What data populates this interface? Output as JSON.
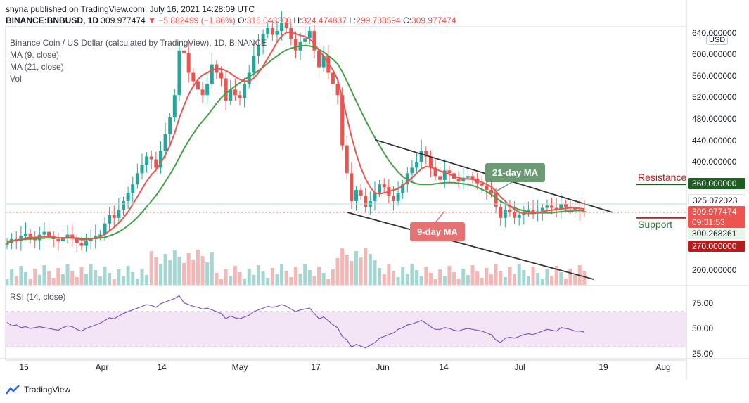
{
  "header": {
    "line1": "shyna published on TradingView.com, July 16, 2021 14:28:09 UTC",
    "symbol": "BINANCE:BNBUSD, 1D",
    "last": "309.977474",
    "change": "−5.882499 (−1.86%)",
    "o_label": "O:",
    "o": "316.043300",
    "h_label": "H:",
    "h": "324.474837",
    "l_label": "L:",
    "l": "299.738594",
    "c_label": "C:",
    "c": "309.977474"
  },
  "legend": {
    "title": "Binance Coin / US Dollar (calculated by TradingView), 1D, BINANCE",
    "ma9": "MA (9, close)",
    "ma21": "MA (21, close)",
    "vol": "Vol"
  },
  "currency": "USD",
  "rsi_label": "RSI (14, close)",
  "footer": "TradingView",
  "annotations": {
    "resistance": "Resistance",
    "support": "Support",
    "ma21_callout": "21-day MA",
    "ma9_callout": "9-day MA"
  },
  "price_tags": {
    "resistance_level": "360.000000",
    "upper_level": "325.072023",
    "last_price": "309.977474",
    "countdown": "09:31:53",
    "lower_level": "300.268261",
    "support_level": "270.000000"
  },
  "colors": {
    "up": "#26a69a",
    "down": "#ef5350",
    "ma9": "#ef5350",
    "ma21": "#43a047",
    "resistance": "#1b5e20",
    "support": "#b71c1c",
    "rsi": "#7e57c2"
  },
  "chart_data": {
    "type": "candlestick",
    "x_ticks": [
      "15",
      "Apr",
      "14",
      "May",
      "17",
      "Jun",
      "14",
      "Jul",
      "19",
      "Aug"
    ],
    "y_ticks": [
      "640.000000",
      "600.000000",
      "560.000000",
      "520.000000",
      "480.000000",
      "440.000000",
      "400.000000",
      "200.000000"
    ],
    "ylim": [
      180,
      640
    ],
    "rsi_ticks": [
      "75.00",
      "50.00",
      "25.00"
    ],
    "rsi_band": [
      30,
      70
    ],
    "closes": [
      255,
      262,
      258,
      268,
      272,
      265,
      260,
      270,
      275,
      268,
      262,
      258,
      265,
      270,
      263,
      255,
      250,
      258,
      262,
      268,
      270,
      290,
      305,
      300,
      315,
      330,
      345,
      360,
      380,
      395,
      410,
      405,
      390,
      420,
      450,
      480,
      520,
      600,
      595,
      560,
      545,
      530,
      520,
      540,
      575,
      560,
      550,
      510,
      530,
      520,
      515,
      540,
      560,
      590,
      610,
      630,
      640,
      628,
      635,
      650,
      640,
      620,
      600,
      615,
      622,
      635,
      600,
      570,
      590,
      560,
      540,
      520,
      430,
      380,
      330,
      350,
      340,
      320,
      330,
      345,
      360,
      355,
      340,
      330,
      345,
      360,
      380,
      390,
      400,
      420,
      410,
      390,
      375,
      368,
      385,
      380,
      370,
      365,
      372,
      375,
      370,
      362,
      358,
      350,
      345,
      320,
      300,
      315,
      310,
      300,
      305,
      310,
      315,
      308,
      312,
      318,
      322,
      318,
      315,
      325,
      320,
      318,
      315,
      312,
      310
    ],
    "ma9": [
      255,
      258,
      260,
      262,
      264,
      265,
      265,
      266,
      267,
      267,
      266,
      264,
      264,
      265,
      264,
      263,
      261,
      261,
      262,
      264,
      266,
      270,
      277,
      283,
      291,
      300,
      311,
      324,
      338,
      352,
      366,
      377,
      386,
      398,
      413,
      430,
      452,
      479,
      501,
      521,
      536,
      548,
      556,
      560,
      565,
      567,
      567,
      564,
      559,
      553,
      548,
      545,
      545,
      550,
      560,
      572,
      586,
      600,
      615,
      626,
      632,
      633,
      630,
      627,
      625,
      620,
      612,
      600,
      590,
      577,
      565,
      548,
      515,
      480,
      445,
      415,
      390,
      370,
      355,
      345,
      343,
      345,
      347,
      350,
      352,
      358,
      365,
      372,
      380,
      388,
      392,
      391,
      388,
      384,
      381,
      378,
      375,
      372,
      370,
      370,
      369,
      367,
      364,
      360,
      356,
      348,
      338,
      330,
      322,
      315,
      310,
      308,
      308,
      308,
      309,
      311,
      313,
      314,
      315,
      316,
      317,
      318,
      318,
      317,
      316
    ],
    "ma21": [
      258,
      259,
      260,
      261,
      262,
      262,
      263,
      263,
      264,
      264,
      264,
      264,
      264,
      264,
      264,
      264,
      263,
      263,
      263,
      263,
      264,
      265,
      268,
      271,
      275,
      280,
      286,
      293,
      301,
      310,
      320,
      330,
      340,
      352,
      365,
      378,
      392,
      408,
      424,
      438,
      451,
      463,
      473,
      483,
      494,
      505,
      515,
      523,
      530,
      536,
      542,
      548,
      553,
      558,
      564,
      570,
      577,
      584,
      590,
      596,
      601,
      604,
      606,
      608,
      609,
      608,
      606,
      602,
      597,
      591,
      584,
      576,
      562,
      545,
      527,
      509,
      492,
      475,
      459,
      444,
      430,
      416,
      403,
      392,
      382,
      374,
      368,
      364,
      361,
      360,
      360,
      360,
      361,
      362,
      363,
      363,
      363,
      362,
      361,
      360,
      358,
      355,
      351,
      347,
      342,
      336,
      330,
      325,
      321,
      318,
      315,
      313,
      311,
      310,
      309,
      309,
      309,
      309,
      310,
      311,
      312,
      312,
      313,
      313,
      313
    ],
    "rsi": [
      58,
      54,
      55,
      52,
      53,
      51,
      52,
      53,
      52,
      51,
      50,
      49,
      52,
      54,
      53,
      50,
      48,
      51,
      53,
      55,
      57,
      60,
      63,
      62,
      65,
      68,
      70,
      72,
      74,
      76,
      78,
      77,
      75,
      79,
      81,
      83,
      85,
      88,
      80,
      78,
      76,
      75,
      73,
      74,
      72,
      70,
      68,
      62,
      65,
      63,
      62,
      64,
      66,
      70,
      72,
      74,
      76,
      75,
      76,
      78,
      76,
      73,
      70,
      72,
      73,
      74,
      68,
      62,
      64,
      60,
      55,
      52,
      42,
      38,
      30,
      33,
      31,
      29,
      32,
      35,
      40,
      42,
      44,
      46,
      50,
      52,
      55,
      56,
      58,
      60,
      57,
      53,
      50,
      50,
      52,
      51,
      49,
      48,
      50,
      51,
      50,
      49,
      48,
      46,
      44,
      38,
      35,
      40,
      41,
      40,
      42,
      44,
      45,
      44,
      46,
      48,
      50,
      49,
      48,
      52,
      51,
      50,
      48,
      48,
      47
    ]
  }
}
